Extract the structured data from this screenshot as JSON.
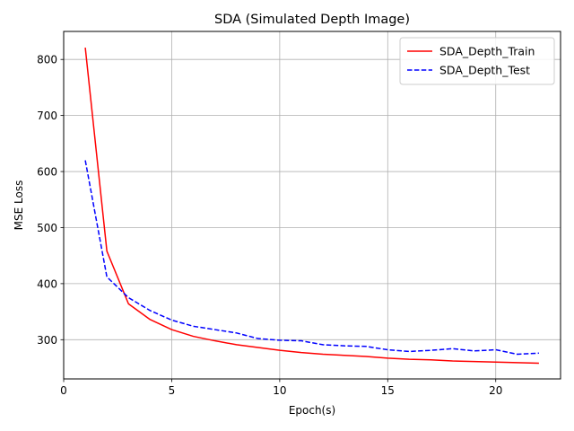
{
  "chart_data": {
    "type": "line",
    "title": "SDA (Simulated Depth Image)",
    "xlabel": "Epoch(s)",
    "ylabel": "MSE Loss",
    "xlim": [
      0,
      23
    ],
    "ylim": [
      230,
      850
    ],
    "xticks": [
      0,
      5,
      10,
      15,
      20
    ],
    "yticks": [
      300,
      400,
      500,
      600,
      700,
      800
    ],
    "grid": true,
    "legend_position": "top-right",
    "series": [
      {
        "name": "SDA_Depth_Train",
        "color": "#ff0000",
        "linestyle": "solid",
        "x": [
          1,
          2,
          3,
          4,
          5,
          6,
          7,
          8,
          9,
          10,
          11,
          12,
          13,
          14,
          15,
          16,
          17,
          18,
          19,
          20,
          21,
          22
        ],
        "y": [
          821,
          458,
          364,
          336,
          318,
          306,
          298,
          291,
          286,
          281,
          277,
          274,
          272,
          270,
          267,
          265,
          264,
          262,
          261,
          260,
          259,
          258
        ]
      },
      {
        "name": "SDA_Depth_Test",
        "color": "#0000ff",
        "linestyle": "dashed",
        "x": [
          1,
          2,
          3,
          4,
          5,
          6,
          7,
          8,
          9,
          10,
          11,
          12,
          13,
          14,
          15,
          16,
          17,
          18,
          19,
          20,
          21,
          22
        ],
        "y": [
          620,
          412,
          375,
          352,
          335,
          324,
          318,
          312,
          302,
          299,
          298,
          291,
          289,
          288,
          282,
          279,
          281,
          284,
          280,
          282,
          274,
          276
        ]
      }
    ]
  }
}
